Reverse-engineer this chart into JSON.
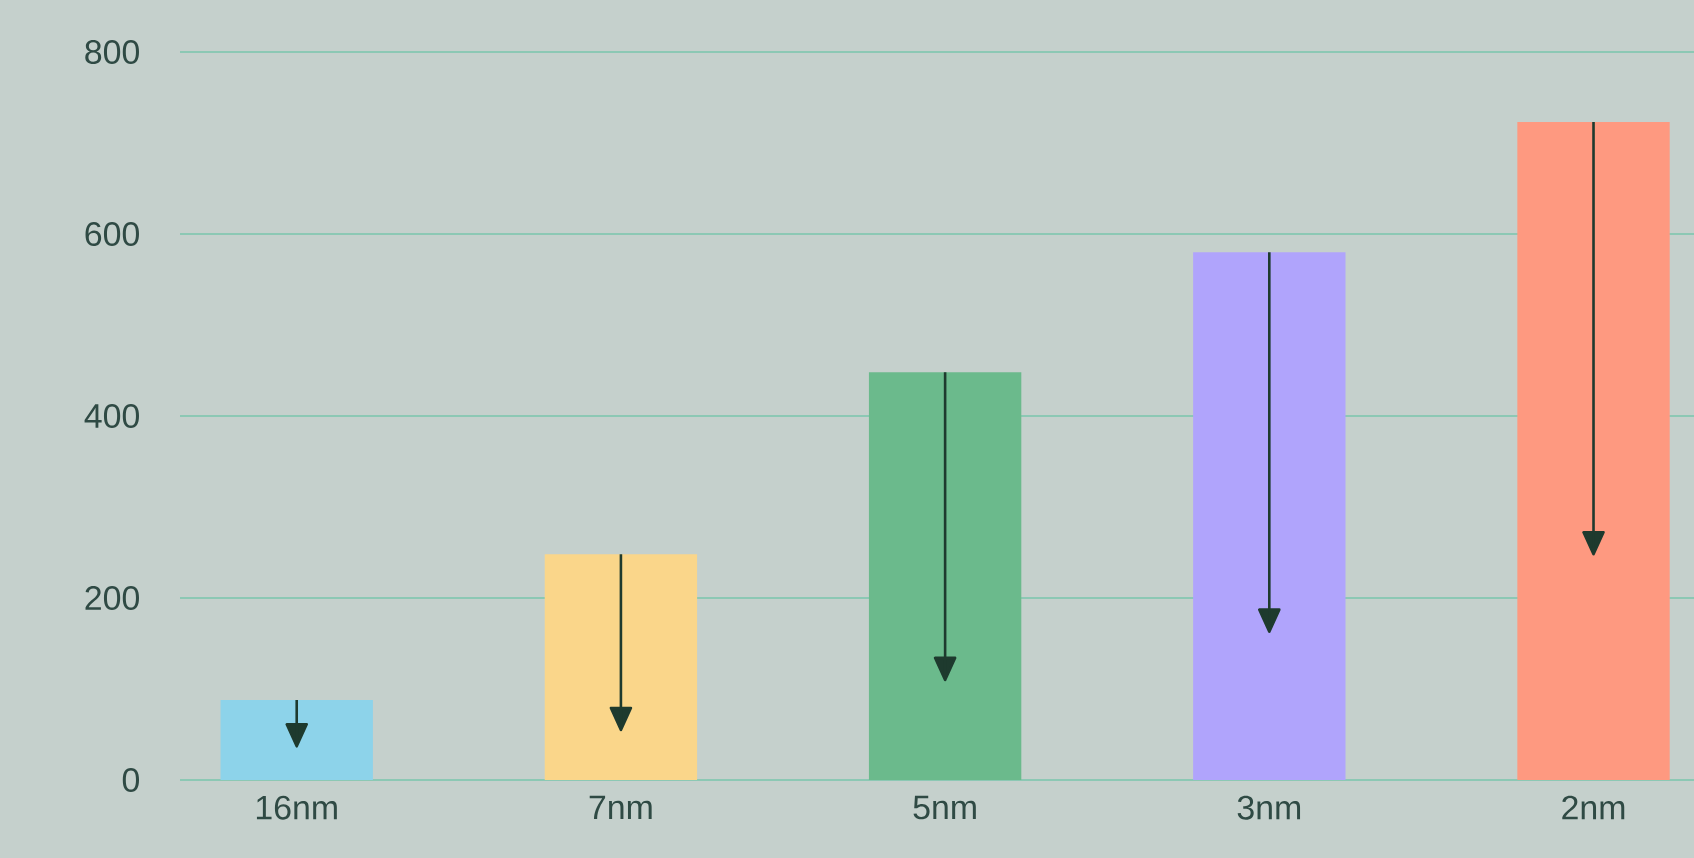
{
  "chart_data": {
    "type": "bar",
    "categories": [
      "16nm",
      "7nm",
      "5nm",
      "3nm",
      "2nm"
    ],
    "values": [
      88,
      248,
      448,
      580,
      723
    ],
    "colors": [
      "#8dd3ea",
      "#fad68a",
      "#6bba8c",
      "#b0a4fc",
      "#fe9980"
    ],
    "errors": [
      [
        37,
        88
      ],
      [
        55,
        248
      ],
      [
        110,
        448
      ],
      [
        163,
        580
      ],
      [
        248,
        723
      ]
    ],
    "ylim": [
      0,
      800
    ],
    "yticks": [
      0,
      200,
      400,
      600,
      800
    ],
    "grid": "y"
  }
}
